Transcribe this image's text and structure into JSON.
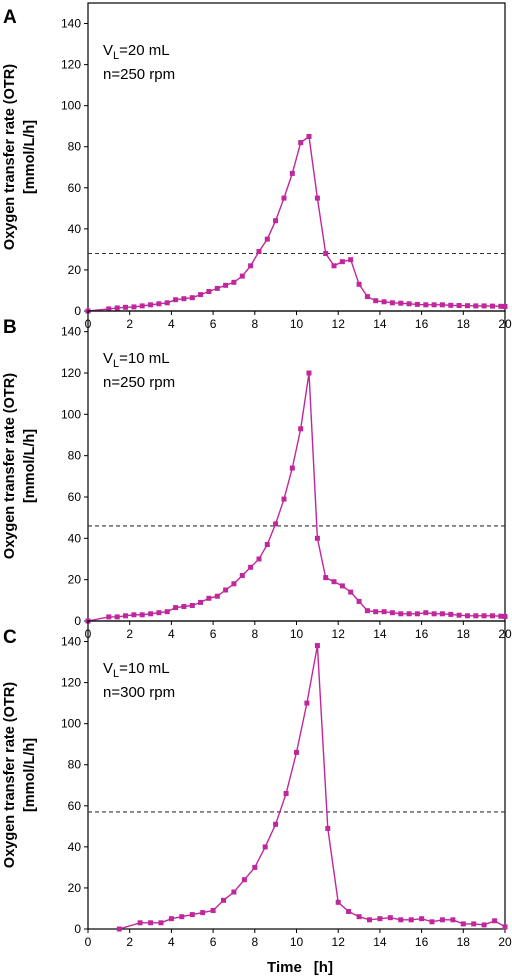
{
  "figure": {
    "xlabel_time": "Time",
    "xlabel_unit": "[h]",
    "series_color": "#c0279c",
    "threshold_color": "#333333"
  },
  "chart_data": [
    {
      "type": "line",
      "panel": "A",
      "ylabel_line1": "Oxygen transfer rate (OTR)",
      "ylabel_line2": "[mmol/L/h]",
      "annotation": {
        "v_prefix": "V",
        "v_sub": "L",
        "v_value": "=20 mL",
        "speed": "n=250 rpm"
      },
      "xlim": [
        0,
        20
      ],
      "ylim": [
        0,
        150
      ],
      "x_ticks": [
        0,
        2,
        4,
        6,
        8,
        10,
        12,
        14,
        16,
        18,
        20
      ],
      "y_ticks": [
        0,
        20,
        40,
        60,
        80,
        100,
        120,
        140
      ],
      "threshold": 28,
      "series": [
        {
          "x": [
            0,
            1,
            1.4,
            1.8,
            2.2,
            2.6,
            3,
            3.4,
            3.8,
            4.2,
            4.6,
            5,
            5.4,
            5.8,
            6.2,
            6.6,
            7,
            7.4,
            7.8,
            8.2,
            8.6,
            9,
            9.4,
            9.8,
            10.2,
            10.6,
            11,
            11.4,
            11.8,
            12.2,
            12.6,
            13,
            13.4,
            13.8,
            14.2,
            14.6,
            15,
            15.4,
            15.8,
            16.2,
            16.6,
            17,
            17.4,
            17.8,
            18.2,
            18.6,
            19,
            19.4,
            19.8,
            20
          ],
          "y": [
            0,
            1,
            1.5,
            1.8,
            2,
            2.5,
            3,
            3.5,
            4,
            5.5,
            6,
            6.5,
            8,
            9.5,
            11,
            12.5,
            14,
            17,
            22,
            29,
            35,
            44,
            55,
            67,
            82,
            85,
            55,
            28,
            22,
            24,
            25,
            13,
            7,
            5,
            4.5,
            4,
            3.8,
            3.5,
            3.2,
            3,
            3,
            3,
            2.8,
            2.7,
            2.6,
            2.5,
            2.5,
            2.4,
            2.3,
            2.2
          ]
        }
      ]
    },
    {
      "type": "line",
      "panel": "B",
      "ylabel_line1": "Oxygen transfer rate (OTR)",
      "ylabel_line2": "[mmol/L/h]",
      "annotation": {
        "v_prefix": "V",
        "v_sub": "L",
        "v_value": "=10 mL",
        "speed": "n=250 rpm"
      },
      "xlim": [
        0,
        20
      ],
      "ylim": [
        0,
        150
      ],
      "x_ticks": [
        0,
        2,
        4,
        6,
        8,
        10,
        12,
        14,
        16,
        18,
        20
      ],
      "y_ticks": [
        0,
        20,
        40,
        60,
        80,
        100,
        120,
        140
      ],
      "threshold": 46,
      "series": [
        {
          "x": [
            0,
            1,
            1.4,
            1.8,
            2.2,
            2.6,
            3,
            3.4,
            3.8,
            4.2,
            4.6,
            5,
            5.4,
            5.8,
            6.2,
            6.6,
            7,
            7.4,
            7.8,
            8.2,
            8.6,
            9,
            9.4,
            9.8,
            10.2,
            10.6,
            11,
            11.4,
            11.8,
            12.2,
            12.6,
            13,
            13.4,
            13.8,
            14.2,
            14.6,
            15,
            15.4,
            15.8,
            16.2,
            16.6,
            17,
            17.4,
            17.8,
            18.2,
            18.6,
            19,
            19.4,
            19.8,
            20
          ],
          "y": [
            0,
            2,
            2,
            2.5,
            3,
            3,
            3.5,
            4,
            4.5,
            6.5,
            7,
            7.5,
            9,
            11,
            12,
            15,
            18,
            22,
            26,
            30,
            37,
            47,
            59,
            74,
            93,
            120,
            40,
            21,
            19,
            17,
            14,
            9.5,
            5,
            4.5,
            4.5,
            4,
            3.5,
            3.5,
            3.5,
            4,
            3.5,
            3.5,
            3.2,
            2.8,
            2.5,
            2.5,
            2.5,
            2.5,
            2.3,
            2.2
          ]
        }
      ]
    },
    {
      "type": "line",
      "panel": "C",
      "ylabel_line1": "Oxygen transfer rate (OTR)",
      "ylabel_line2": "[mmol/L/h]",
      "annotation": {
        "v_prefix": "V",
        "v_sub": "L",
        "v_value": "=10 mL",
        "speed": "n=300 rpm"
      },
      "xlim": [
        0,
        20
      ],
      "ylim": [
        0,
        150
      ],
      "x_ticks": [
        0,
        2,
        4,
        6,
        8,
        10,
        12,
        14,
        16,
        18,
        20
      ],
      "y_ticks": [
        0,
        20,
        40,
        60,
        80,
        100,
        120,
        140
      ],
      "xlabel_time": "Time",
      "xlabel_unit": "[h]",
      "threshold": 57,
      "series": [
        {
          "x": [
            1.5,
            2.5,
            3,
            3.5,
            4,
            4.5,
            5,
            5.5,
            6,
            6.5,
            7,
            7.5,
            8,
            8.5,
            9,
            9.5,
            10,
            10.5,
            11,
            11.5,
            12,
            12.5,
            13,
            13.5,
            14,
            14.5,
            15,
            15.5,
            16,
            16.5,
            17,
            17.5,
            18,
            18.5,
            19,
            19.5,
            20
          ],
          "y": [
            0,
            3,
            3,
            3,
            5,
            6,
            7,
            8,
            9,
            14,
            18,
            24,
            30,
            40,
            51,
            66,
            86,
            110,
            138,
            49,
            13,
            8.5,
            6,
            4.5,
            5,
            5.5,
            4.5,
            4.5,
            5,
            3.5,
            4.5,
            4.5,
            2.5,
            2.5,
            2,
            4,
            1
          ]
        }
      ]
    }
  ]
}
